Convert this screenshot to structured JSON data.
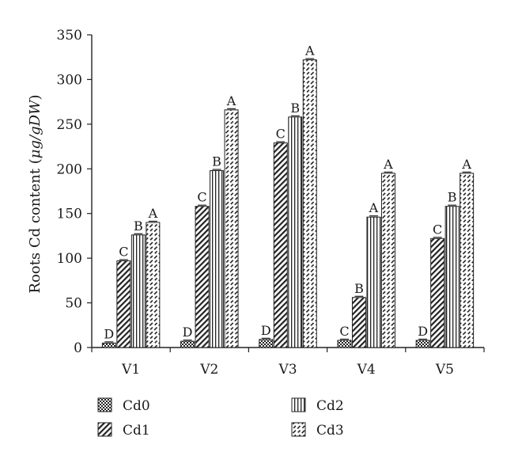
{
  "chart_data": {
    "type": "bar",
    "ylabel_prefix": "Roots Cd content (",
    "ylabel_unit": "μg/gDW",
    "ylabel_suffix": ")",
    "ylim": [
      0,
      350
    ],
    "yticks": [
      "0",
      "50",
      "100",
      "150",
      "200",
      "250",
      "300",
      "350"
    ],
    "categories": [
      "V1",
      "V2",
      "V3",
      "V4",
      "V5"
    ],
    "series": [
      {
        "name": "Cd0",
        "pattern": "checker",
        "values": [
          5,
          7,
          9,
          8,
          8
        ],
        "letters": [
          "D",
          "D",
          "D",
          "C",
          "D"
        ]
      },
      {
        "name": "Cd1",
        "pattern": "diagonal-dense",
        "values": [
          97,
          158,
          229,
          56,
          122
        ],
        "letters": [
          "C",
          "C",
          "C",
          "B",
          "C"
        ]
      },
      {
        "name": "Cd2",
        "pattern": "vertical",
        "values": [
          126,
          198,
          258,
          146,
          158
        ],
        "letters": [
          "B",
          "B",
          "B",
          "A",
          "B"
        ]
      },
      {
        "name": "Cd3",
        "pattern": "diagonal-dash",
        "values": [
          140,
          266,
          322,
          195,
          195
        ],
        "letters": [
          "A",
          "A",
          "A",
          "A",
          "A"
        ]
      }
    ],
    "grid": false,
    "legend_position": "bottom"
  }
}
